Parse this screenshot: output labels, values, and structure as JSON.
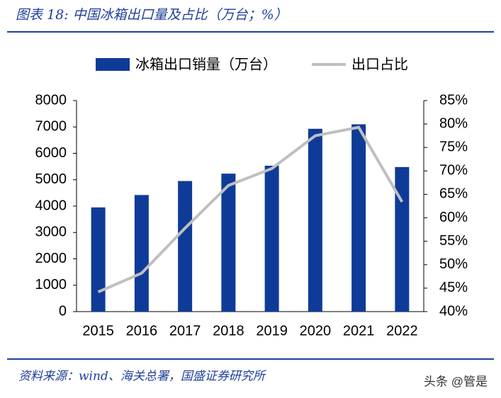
{
  "chart_data": {
    "type": "bar",
    "title": "图表 18:  中国冰箱出口量及占比（万台；%）",
    "categories": [
      "2015",
      "2016",
      "2017",
      "2018",
      "2019",
      "2020",
      "2021",
      "2022"
    ],
    "series": [
      {
        "name": "冰箱出口销量（万台）",
        "type": "bar",
        "color": "#0f3b98",
        "values": [
          3950,
          4420,
          4950,
          5230,
          5530,
          6930,
          7100,
          5480
        ]
      },
      {
        "name": "出口占比",
        "type": "line",
        "color": "#bfbfbf",
        "axis": "y2",
        "values": [
          44.2,
          48.2,
          57.8,
          66.9,
          70.5,
          77.5,
          79.3,
          63.4
        ]
      }
    ],
    "ylim": [
      0,
      8000
    ],
    "yticks": [
      0,
      1000,
      2000,
      3000,
      4000,
      5000,
      6000,
      7000,
      8000
    ],
    "y2lim": [
      40,
      85
    ],
    "y2ticks": [
      {
        "value": 40,
        "label": "40%"
      },
      {
        "value": 45,
        "label": "45%"
      },
      {
        "value": 50,
        "label": "50%"
      },
      {
        "value": 55,
        "label": "55%"
      },
      {
        "value": 60,
        "label": "60%"
      },
      {
        "value": 65,
        "label": "65%"
      },
      {
        "value": 70,
        "label": "70%"
      },
      {
        "value": 75,
        "label": "75%"
      },
      {
        "value": 80,
        "label": "80%"
      },
      {
        "value": 85,
        "label": "85%"
      }
    ],
    "source": "资料来源：wind、海关总署，国盛证券研究所",
    "watermark": "头条 @管是"
  }
}
